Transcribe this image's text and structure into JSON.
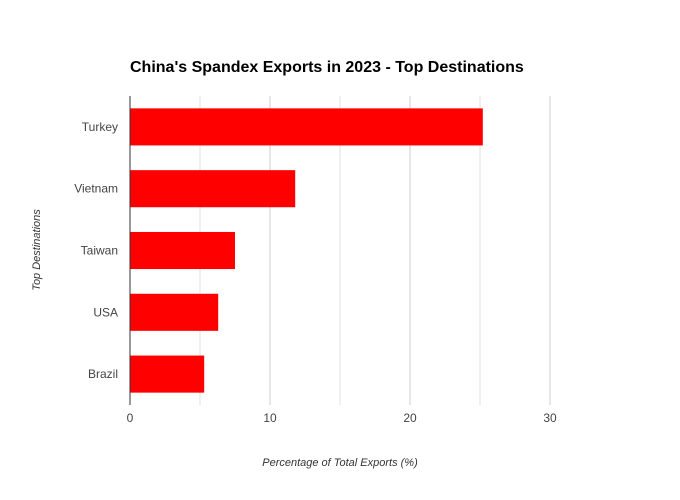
{
  "chart_data": {
    "type": "bar",
    "orientation": "horizontal",
    "title": "China's Spandex Exports in 2023 - Top Destinations",
    "xlabel": "Percentage of Total Exports (%)",
    "ylabel": "Top Destinations",
    "categories": [
      "Turkey",
      "Vietnam",
      "Taiwan",
      "USA",
      "Brazil"
    ],
    "values": [
      25.2,
      11.8,
      7.5,
      6.3,
      5.3
    ],
    "xlim": [
      0,
      32
    ],
    "xticks": [
      0,
      10,
      20,
      30
    ],
    "grid": true,
    "bar_color": "#ff0000"
  }
}
